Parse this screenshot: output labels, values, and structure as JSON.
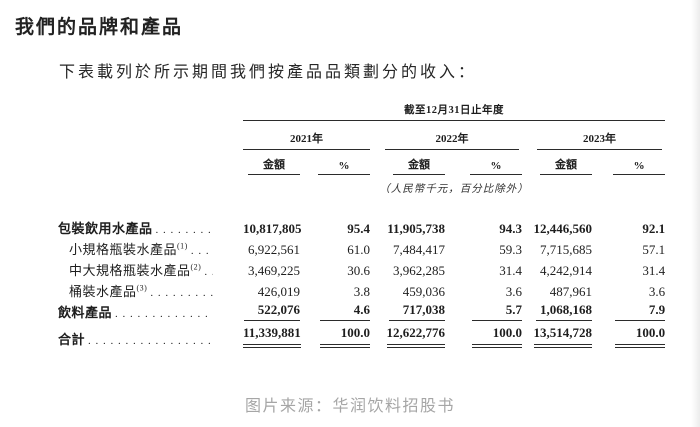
{
  "page": {
    "title": "我們的品牌和產品",
    "intro": "下表載列於所示期間我們按產品品類劃分的收入：",
    "caption": "图片来源：华润饮料招股书"
  },
  "table": {
    "period_header": "截至12月31日止年度",
    "unit_note": "（人民幣千元，百分比除外）",
    "year_groups": [
      {
        "year": "2021年",
        "amount_label": "金額",
        "percent_label": "%"
      },
      {
        "year": "2022年",
        "amount_label": "金額",
        "percent_label": "%"
      },
      {
        "year": "2023年",
        "amount_label": "金額",
        "percent_label": "%"
      }
    ],
    "rows": [
      {
        "label": "包裝飲用水產品",
        "footnote_marker": "",
        "indent": false,
        "bold": true,
        "rule": "none",
        "values": [
          "10,817,805",
          "95.4",
          "11,905,738",
          "94.3",
          "12,446,560",
          "92.1"
        ]
      },
      {
        "label": "小規格瓶裝水產品",
        "footnote_marker": "(1)",
        "indent": true,
        "bold": false,
        "rule": "none",
        "values": [
          "6,922,561",
          "61.0",
          "7,484,417",
          "59.3",
          "7,715,685",
          "57.1"
        ]
      },
      {
        "label": "中大規格瓶裝水產品",
        "footnote_marker": "(2)",
        "indent": true,
        "bold": false,
        "rule": "none",
        "values": [
          "3,469,225",
          "30.6",
          "3,962,285",
          "31.4",
          "4,242,914",
          "31.4"
        ]
      },
      {
        "label": "桶裝水產品",
        "footnote_marker": "(3)",
        "indent": true,
        "bold": false,
        "rule": "none",
        "values": [
          "426,019",
          "3.8",
          "459,036",
          "3.6",
          "487,961",
          "3.6"
        ]
      },
      {
        "label": "飲料產品",
        "footnote_marker": "",
        "indent": false,
        "bold": true,
        "rule": "single",
        "values": [
          "522,076",
          "4.6",
          "717,038",
          "5.7",
          "1,068,168",
          "7.9"
        ]
      },
      {
        "label": "合計",
        "footnote_marker": "",
        "indent": false,
        "bold": true,
        "rule": "double",
        "values": [
          "11,339,881",
          "100.0",
          "12,622,776",
          "100.0",
          "13,514,728",
          "100.0"
        ]
      }
    ]
  },
  "colors": {
    "text": "#1e1e1e",
    "rule_line": "#2b2b2b",
    "caption": "#a6a6a6",
    "background": "#ffffff"
  }
}
